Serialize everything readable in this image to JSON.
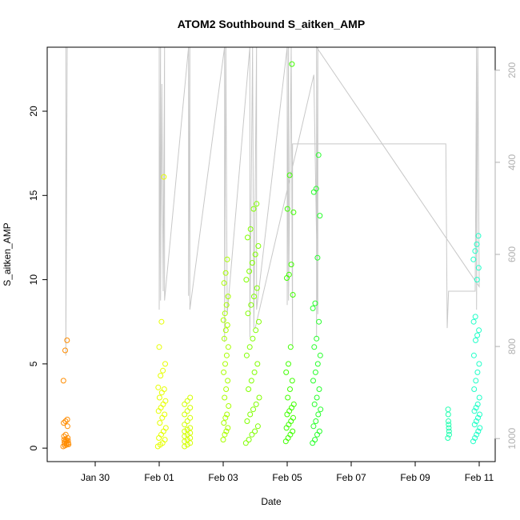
{
  "chart_data": {
    "type": "scatter",
    "title": "ATOM2 Southbound S_aitken_AMP",
    "xlabel": "Date",
    "ylabel": "S_aitken_AMP",
    "x_axis": {
      "kind": "date",
      "range": [
        "2017-01-28T12:00",
        "2017-02-11T12:00"
      ],
      "ticks": [
        {
          "date": "2017-01-30",
          "label": "Jan 30"
        },
        {
          "date": "2017-02-01",
          "label": "Feb 01"
        },
        {
          "date": "2017-02-03",
          "label": "Feb 03"
        },
        {
          "date": "2017-02-05",
          "label": "Feb 05"
        },
        {
          "date": "2017-02-07",
          "label": "Feb 07"
        },
        {
          "date": "2017-02-09",
          "label": "Feb 09"
        },
        {
          "date": "2017-02-11",
          "label": "Feb 11"
        }
      ]
    },
    "y_axis": {
      "range": [
        -0.8,
        23.8
      ],
      "ticks": [
        0,
        5,
        10,
        15,
        20
      ]
    },
    "secondary_y_axis": {
      "inverted": true,
      "range": [
        1050,
        150
      ],
      "ticks": [
        200,
        400,
        600,
        800,
        1000
      ],
      "color": "#b0b0b0"
    },
    "grid": false,
    "point_marker": "open-circle",
    "clusters": [
      {
        "center": "2017-01-29T02:00",
        "span_hours": 4,
        "color": "#ff8c00",
        "values": [
          0.1,
          0.15,
          0.2,
          0.22,
          0.25,
          0.3,
          0.3,
          0.35,
          0.4,
          0.45,
          0.5,
          0.5,
          0.6,
          0.7,
          0.8,
          1.3,
          1.5,
          1.6,
          1.7,
          4.0,
          5.8,
          6.4
        ]
      },
      {
        "center": "2017-02-01T02:00",
        "span_hours": 6,
        "color": "#e6ff00",
        "values": [
          0.1,
          0.2,
          0.3,
          0.5,
          0.6,
          0.8,
          1.0,
          1.2,
          1.5,
          1.8,
          2.0,
          2.2,
          2.4,
          2.6,
          2.8,
          3.0,
          3.3,
          3.5,
          3.6,
          4.3,
          4.6,
          5.0,
          6.0,
          7.5,
          16.1
        ]
      },
      {
        "center": "2017-02-01T22:00",
        "span_hours": 6,
        "color": "#d4ff00",
        "values": [
          0.1,
          0.2,
          0.3,
          0.4,
          0.5,
          0.6,
          0.7,
          0.8,
          0.9,
          1.0,
          1.1,
          1.2,
          1.4,
          1.6,
          1.8,
          2.0,
          2.2,
          2.4,
          2.6,
          2.8,
          3.0
        ]
      },
      {
        "center": "2017-02-03T02:00",
        "span_hours": 4,
        "color": "#a8ff00",
        "values": [
          0.5,
          0.8,
          1.0,
          1.2,
          1.5,
          1.8,
          2.0,
          2.5,
          3.0,
          3.5,
          4.0,
          4.5,
          5.0,
          5.5,
          6.0,
          6.5,
          7.0,
          7.3,
          7.6,
          8.0,
          8.5,
          9.0,
          9.8,
          10.4,
          11.2
        ]
      },
      {
        "center": "2017-02-03T22:00",
        "span_hours": 10,
        "color": "#80ff00",
        "values": [
          0.3,
          0.5,
          0.8,
          1.0,
          1.3,
          1.6,
          2.0,
          2.3,
          2.6,
          3.0,
          3.5,
          4.0,
          4.5,
          5.0,
          5.5,
          6.0,
          6.5,
          7.0,
          7.5,
          8.0,
          8.5,
          9.0,
          9.5,
          10.0,
          10.5,
          11.0,
          11.5,
          12.0,
          12.5,
          13.0,
          14.2,
          14.5
        ]
      },
      {
        "center": "2017-02-05T02:00",
        "span_hours": 6,
        "color": "#40ff00",
        "values": [
          0.4,
          0.6,
          0.8,
          1.0,
          1.2,
          1.4,
          1.6,
          1.8,
          2.0,
          2.2,
          2.4,
          2.6,
          3.0,
          3.5,
          4.0,
          4.5,
          5.0,
          6.0,
          9.1,
          10.1,
          10.3,
          10.9,
          14.0,
          14.2,
          16.2,
          22.8
        ]
      },
      {
        "center": "2017-02-05T22:00",
        "span_hours": 6,
        "color": "#26ff2a",
        "values": [
          0.3,
          0.5,
          0.8,
          1.0,
          1.3,
          1.6,
          2.0,
          2.3,
          2.6,
          3.0,
          3.5,
          4.0,
          4.5,
          5.0,
          5.5,
          6.0,
          6.5,
          7.5,
          8.3,
          8.6,
          11.3,
          13.8,
          15.2,
          15.4,
          17.4
        ]
      },
      {
        "center": "2017-02-10T01:00",
        "span_hours": 1,
        "color": "#20ffb0",
        "values": [
          0.6,
          0.8,
          1.0,
          1.2,
          1.4,
          1.6,
          2.0,
          2.3
        ]
      },
      {
        "center": "2017-02-10T22:00",
        "span_hours": 5,
        "color": "#20ffc8",
        "values": [
          0.4,
          0.6,
          0.8,
          1.0,
          1.2,
          1.4,
          1.6,
          1.8,
          2.0,
          2.2,
          2.4,
          2.6,
          3.0,
          3.5,
          4.0,
          4.5,
          5.0,
          5.5,
          6.4,
          6.7,
          7.0,
          7.5,
          7.8,
          10.0,
          10.7,
          11.2,
          11.7,
          12.1,
          12.6
        ]
      }
    ],
    "secondary_line": {
      "color": "#c8c8c8",
      "points": [
        [
          "2017-01-29T02:00",
          150
        ],
        [
          "2017-01-29T02:00",
          820
        ],
        [
          "2017-01-29T03:00",
          150
        ],
        [
          "2017-02-01T00:00",
          150
        ],
        [
          "2017-02-01T00:00",
          720
        ],
        [
          "2017-02-01T01:00",
          150
        ],
        [
          "2017-02-01T01:00",
          700
        ],
        [
          "2017-02-01T02:00",
          230
        ],
        [
          "2017-02-01T03:00",
          680
        ],
        [
          "2017-02-01T04:00",
          150
        ],
        [
          "2017-02-01T04:00",
          700
        ],
        [
          "2017-02-01T22:00",
          150
        ],
        [
          "2017-02-01T22:00",
          690
        ],
        [
          "2017-02-01T23:00",
          150
        ],
        [
          "2017-02-01T23:00",
          720
        ],
        [
          "2017-02-03T01:00",
          150
        ],
        [
          "2017-02-03T01:00",
          790
        ],
        [
          "2017-02-03T02:00",
          150
        ],
        [
          "2017-02-03T03:00",
          730
        ],
        [
          "2017-02-03T20:00",
          150
        ],
        [
          "2017-02-03T20:00",
          780
        ],
        [
          "2017-02-03T22:00",
          150
        ],
        [
          "2017-02-03T23:00",
          760
        ],
        [
          "2017-02-04T01:00",
          150
        ],
        [
          "2017-02-04T01:00",
          720
        ],
        [
          "2017-02-05T00:00",
          150
        ],
        [
          "2017-02-05T00:00",
          710
        ],
        [
          "2017-02-05T01:00",
          150
        ],
        [
          "2017-02-05T01:00",
          700
        ],
        [
          "2017-02-05T03:00",
          150
        ],
        [
          "2017-02-05T04:00",
          800
        ],
        [
          "2017-02-05T04:00",
          360
        ],
        [
          "2017-02-09T23:00",
          360
        ],
        [
          "2017-02-10T00:00",
          760
        ],
        [
          "2017-02-10T01:00",
          680
        ],
        [
          "2017-02-10T21:00",
          680
        ],
        [
          "2017-02-10T22:00",
          150
        ],
        [
          "2017-02-10T22:00",
          720
        ],
        [
          "2017-02-10T23:00",
          150
        ],
        [
          "2017-02-11T00:00",
          670
        ],
        [
          "2017-02-05T22:00",
          150
        ],
        [
          "2017-02-05T22:00",
          780
        ],
        [
          "2017-02-05T23:00",
          150
        ],
        [
          "2017-02-05T23:00",
          730
        ],
        [
          "2017-02-05T20:00",
          210
        ],
        [
          "2017-02-04T00:00",
          760
        ]
      ]
    }
  }
}
